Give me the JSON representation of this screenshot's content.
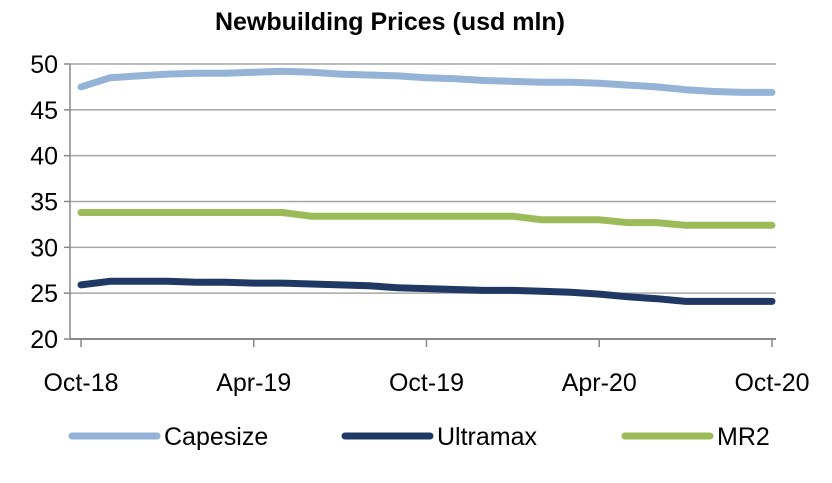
{
  "chart_data": {
    "type": "line",
    "title": "Newbuilding Prices (usd mln)",
    "xlabel": "",
    "ylabel": "",
    "ylim": [
      20,
      50
    ],
    "yticks": [
      20,
      25,
      30,
      35,
      40,
      45,
      50
    ],
    "grid": "horizontal",
    "legend": "bottom",
    "xtick_labels": [
      "Oct-18",
      "Apr-19",
      "Oct-19",
      "Apr-20",
      "Oct-20"
    ],
    "categories": [
      "Oct-18",
      "Nov-18",
      "Dec-18",
      "Jan-19",
      "Feb-19",
      "Mar-19",
      "Apr-19",
      "May-19",
      "Jun-19",
      "Jul-19",
      "Aug-19",
      "Sep-19",
      "Oct-19",
      "Nov-19",
      "Dec-19",
      "Jan-20",
      "Feb-20",
      "Mar-20",
      "Apr-20",
      "May-20",
      "Jun-20",
      "Jul-20",
      "Aug-20",
      "Sep-20",
      "Oct-20"
    ],
    "series": [
      {
        "name": "Capesize",
        "color": "#95b3d7",
        "values": [
          47.5,
          48.5,
          48.7,
          48.9,
          49.0,
          49.0,
          49.1,
          49.2,
          49.1,
          48.9,
          48.8,
          48.7,
          48.5,
          48.4,
          48.2,
          48.1,
          48.0,
          48.0,
          47.9,
          47.7,
          47.5,
          47.2,
          47.0,
          46.9,
          46.9
        ]
      },
      {
        "name": "Ultramax",
        "color": "#1f3864",
        "values": [
          25.9,
          26.3,
          26.3,
          26.3,
          26.2,
          26.2,
          26.1,
          26.1,
          26.0,
          25.9,
          25.8,
          25.6,
          25.5,
          25.4,
          25.3,
          25.3,
          25.2,
          25.1,
          24.9,
          24.6,
          24.4,
          24.1,
          24.1,
          24.1,
          24.1
        ]
      },
      {
        "name": "MR2",
        "color": "#9bbb59",
        "values": [
          33.8,
          33.8,
          33.8,
          33.8,
          33.8,
          33.8,
          33.8,
          33.8,
          33.4,
          33.4,
          33.4,
          33.4,
          33.4,
          33.4,
          33.4,
          33.4,
          33.0,
          33.0,
          33.0,
          32.7,
          32.7,
          32.4,
          32.4,
          32.4,
          32.4
        ]
      }
    ]
  }
}
